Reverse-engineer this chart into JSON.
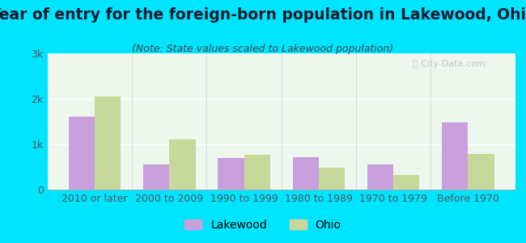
{
  "title": "Year of entry for the foreign-born population in Lakewood, Ohio",
  "subtitle": "(Note: State values scaled to Lakewood population)",
  "categories": [
    "2010 or later",
    "2000 to 2009",
    "1990 to 1999",
    "1980 to 1989",
    "1970 to 1979",
    "Before 1970"
  ],
  "lakewood_values": [
    1600,
    550,
    700,
    720,
    560,
    1480
  ],
  "ohio_values": [
    2050,
    1100,
    760,
    480,
    330,
    790
  ],
  "lakewood_color": "#c9a0dc",
  "ohio_color": "#c8d89a",
  "background_outer": "#00e5ff",
  "background_inner": "#e8f5e9",
  "ylim": [
    0,
    3000
  ],
  "yticks": [
    0,
    1000,
    2000,
    3000
  ],
  "ytick_labels": [
    "0",
    "1k",
    "2k",
    "3k"
  ],
  "bar_width": 0.35,
  "title_fontsize": 13.5,
  "subtitle_fontsize": 9,
  "tick_fontsize": 9,
  "legend_fontsize": 10
}
